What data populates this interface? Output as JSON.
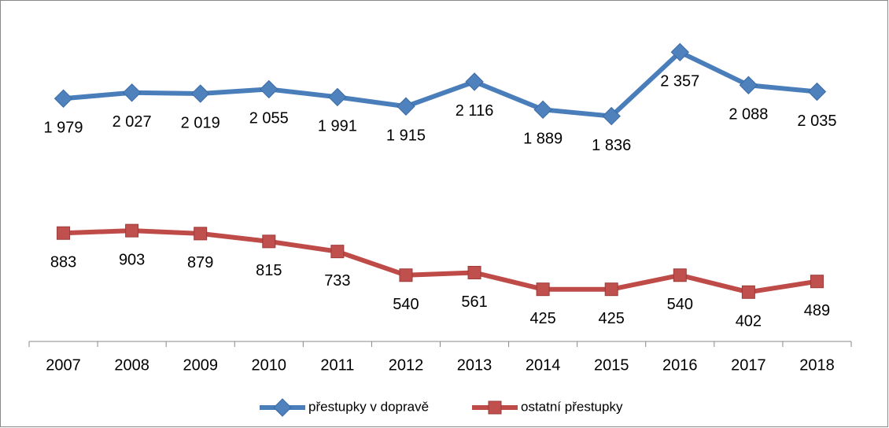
{
  "chart_data": {
    "type": "line",
    "categories": [
      "2007",
      "2008",
      "2009",
      "2010",
      "2011",
      "2012",
      "2013",
      "2014",
      "2015",
      "2016",
      "2017",
      "2018"
    ],
    "ylim": [
      0,
      2500
    ],
    "series": [
      {
        "name": "přestupky v dopravě",
        "color": "#4a7ebb",
        "values": [
          1979,
          2027,
          2019,
          2055,
          1991,
          1915,
          2116,
          1889,
          1836,
          2357,
          2088,
          2035
        ],
        "value_labels": [
          "1 979",
          "2 027",
          "2 019",
          "2 055",
          "1 991",
          "1 915",
          "2 116",
          "1 889",
          "1 836",
          "2 357",
          "2 088",
          "2 035"
        ]
      },
      {
        "name": "ostatní přestupky",
        "color": "#be4b48",
        "values": [
          883,
          903,
          879,
          815,
          733,
          540,
          561,
          425,
          425,
          540,
          402,
          489
        ]
      }
    ],
    "legend": "bottom"
  }
}
